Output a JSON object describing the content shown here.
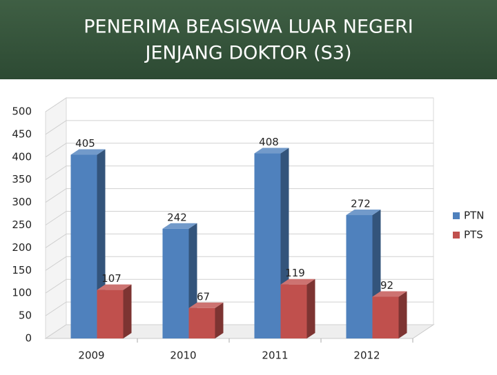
{
  "chart_data": {
    "type": "bar",
    "title": [
      "PENERIMA BEASISWA LUAR NEGERI",
      "JENJANG DOKTOR (S3)"
    ],
    "categories": [
      "2009",
      "2010",
      "2011",
      "2012"
    ],
    "series": [
      {
        "name": "PTN",
        "color": "#4f81bd",
        "values": [
          405,
          242,
          408,
          272
        ]
      },
      {
        "name": "PTS",
        "color": "#c0504d",
        "values": [
          107,
          67,
          119,
          92
        ]
      }
    ],
    "ylim": [
      0,
      500
    ],
    "yticks": [
      0,
      50,
      100,
      150,
      200,
      250,
      300,
      350,
      400,
      450,
      500
    ],
    "grid": true,
    "legend": "right"
  }
}
